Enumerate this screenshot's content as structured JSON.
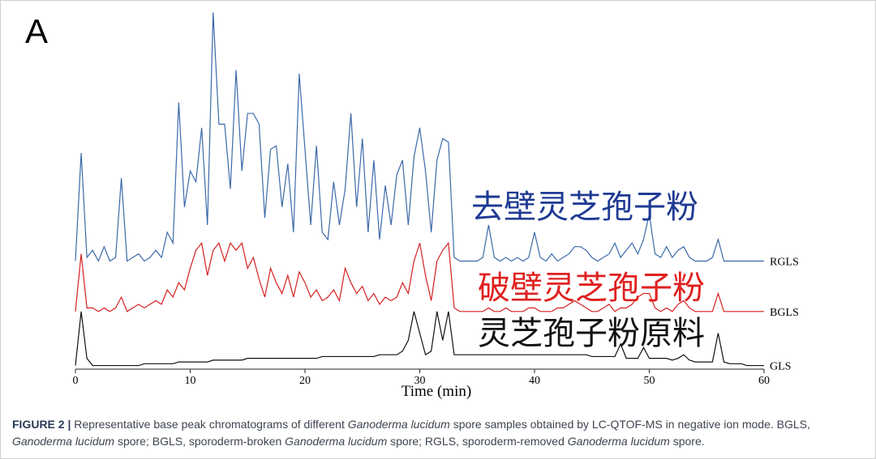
{
  "chart_data": {
    "type": "line",
    "panel_label": "A",
    "xlabel": "Time (min)",
    "xlim": [
      0,
      60
    ],
    "xticks": [
      0,
      10,
      20,
      30,
      40,
      50,
      60
    ],
    "ylim": [
      0,
      100
    ],
    "x": [
      0,
      0.5,
      1,
      1.5,
      2,
      2.5,
      3,
      3.5,
      4,
      4.5,
      5,
      5.5,
      6,
      6.5,
      7,
      7.5,
      8,
      8.5,
      9,
      9.5,
      10,
      10.5,
      11,
      11.5,
      12,
      12.5,
      13,
      13.5,
      14,
      14.5,
      15,
      15.5,
      16,
      16.5,
      17,
      17.5,
      18,
      18.5,
      19,
      19.5,
      20,
      20.5,
      21,
      21.5,
      22,
      22.5,
      23,
      23.5,
      24,
      24.5,
      25,
      25.5,
      26,
      26.5,
      27,
      27.5,
      28,
      28.5,
      29,
      29.5,
      30,
      30.5,
      31,
      31.5,
      32,
      32.5,
      33,
      33.5,
      34,
      34.5,
      35,
      35.5,
      36,
      36.5,
      37,
      37.5,
      38,
      38.5,
      39,
      39.5,
      40,
      40.5,
      41,
      41.5,
      42,
      42.5,
      43,
      43.5,
      44,
      44.5,
      45,
      45.5,
      46,
      46.5,
      47,
      47.5,
      48,
      48.5,
      49,
      49.5,
      50,
      50.5,
      51,
      51.5,
      52,
      52.5,
      53,
      53.5,
      54,
      54.5,
      55,
      55.5,
      56,
      56.5,
      57,
      57.5,
      58,
      58.5,
      59,
      59.5,
      60
    ],
    "series": [
      {
        "name": "RGLS",
        "color": "#3b6aa8",
        "values": [
          30,
          60,
          31,
          33,
          30,
          34,
          30,
          31,
          53,
          30,
          31,
          32,
          30,
          31,
          33,
          31,
          38,
          35,
          74,
          45,
          55,
          52,
          67,
          40,
          99,
          68,
          68,
          50,
          83,
          55,
          71,
          71,
          68,
          42,
          61,
          62,
          45,
          57,
          38,
          82,
          61,
          40,
          62,
          38,
          36,
          52,
          40,
          50,
          71,
          45,
          64,
          38,
          58,
          36,
          51,
          40,
          54,
          58,
          40,
          59,
          67,
          55,
          38,
          58,
          64,
          63,
          31,
          30,
          30,
          30,
          30,
          31,
          40,
          31,
          30,
          31,
          30,
          31,
          30,
          31,
          38,
          31,
          30,
          32,
          30,
          31,
          32,
          34,
          34,
          33,
          31,
          30,
          31,
          32,
          35,
          31,
          33,
          35,
          32,
          36,
          43,
          32,
          31,
          34,
          31,
          33,
          34,
          31,
          30,
          30,
          30,
          31,
          36,
          30,
          30,
          30,
          30,
          30,
          30,
          30,
          30
        ]
      },
      {
        "name": "BGLS",
        "color": "#d42020",
        "values": [
          16,
          32,
          17,
          17,
          16,
          17,
          16,
          17,
          20,
          16,
          17,
          18,
          17,
          18,
          19,
          18,
          22,
          20,
          24,
          22,
          28,
          33,
          35,
          26,
          33,
          35,
          30,
          35,
          33,
          35,
          28,
          31,
          25,
          20,
          28,
          24,
          21,
          26,
          20,
          27,
          24,
          20,
          22,
          19,
          20,
          22,
          19,
          28,
          24,
          21,
          23,
          19,
          21,
          18,
          20,
          19,
          20,
          24,
          21,
          30,
          35,
          26,
          19,
          30,
          33,
          35,
          17,
          16,
          16,
          16,
          16,
          16,
          17,
          16,
          16,
          17,
          16,
          16,
          16,
          17,
          17,
          16,
          16,
          16,
          17,
          17,
          18,
          19,
          18,
          17,
          16,
          16,
          17,
          18,
          16,
          17,
          17,
          18,
          20,
          21,
          21,
          17,
          16,
          17,
          16,
          18,
          19,
          17,
          16,
          16,
          16,
          16,
          21,
          16,
          16,
          16,
          16,
          16,
          16,
          16,
          16
        ]
      },
      {
        "name": "GLS",
        "color": "#111111",
        "values": [
          1,
          16,
          3,
          1,
          1,
          1,
          1,
          1,
          1,
          1,
          1,
          1,
          1.5,
          1.5,
          1.5,
          1.5,
          1.5,
          1.5,
          2,
          2,
          2,
          2,
          2,
          2,
          2.5,
          2.5,
          2.5,
          2.5,
          2.5,
          2.5,
          3,
          3,
          3,
          3,
          3,
          3,
          3,
          3,
          3,
          3,
          3,
          3,
          3,
          3.5,
          3.5,
          3.5,
          3.5,
          3.5,
          3.5,
          3.5,
          3.5,
          3.5,
          3.5,
          4,
          4,
          4,
          4,
          5,
          8,
          16,
          10,
          4,
          5,
          16,
          8,
          16,
          4,
          4,
          4,
          4,
          4,
          4,
          4,
          4,
          4,
          4,
          4,
          4,
          4,
          4,
          4,
          4,
          4,
          4,
          4,
          4,
          4,
          4,
          4,
          4,
          3.5,
          3.5,
          3.5,
          3.5,
          3.5,
          7,
          3,
          3,
          3,
          6,
          3,
          3,
          3,
          3,
          2.5,
          3,
          4,
          2.5,
          2,
          2,
          2,
          2,
          10,
          2,
          1.5,
          1.5,
          1.5,
          1,
          1,
          1,
          1
        ]
      }
    ],
    "annotations": [
      {
        "text": "去壁灵芝孢子粉",
        "color": "#1f3a93"
      },
      {
        "text": "破壁灵芝孢子粉",
        "color": "#e02020"
      },
      {
        "text": "灵芝孢子粉原料",
        "color": "#111111"
      }
    ],
    "caption": {
      "label": "FIGURE 2 |",
      "parts": [
        {
          "text": " Representative base peak chromatograms of different ",
          "italic": false
        },
        {
          "text": "Ganoderma lucidum",
          "italic": true
        },
        {
          "text": " spore samples obtained by LC-QTOF-MS in negative ion mode. BGLS, ",
          "italic": false
        },
        {
          "text": "Ganoderma lucidum",
          "italic": true
        },
        {
          "text": " spore; BGLS, sporoderm-broken ",
          "italic": false
        },
        {
          "text": "Ganoderma lucidum",
          "italic": true
        },
        {
          "text": " spore; RGLS, sporoderm-removed ",
          "italic": false
        },
        {
          "text": "Ganoderma lucidum",
          "italic": true
        },
        {
          "text": " spore.",
          "italic": false
        }
      ]
    }
  }
}
